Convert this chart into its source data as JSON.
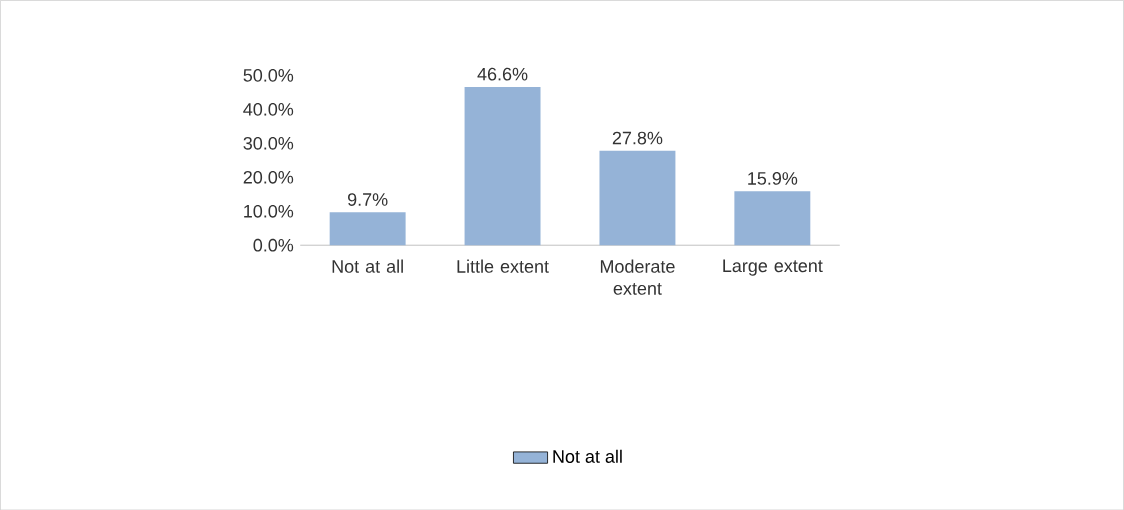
{
  "chart_data": {
    "type": "bar",
    "categories": [
      "Not at all",
      "Little extent",
      "Moderate extent",
      "Large extent"
    ],
    "series": [
      {
        "name": "Not at all",
        "color": "#95b3d7",
        "values": [
          9.7,
          46.6,
          27.8,
          15.9
        ],
        "value_labels": [
          "9.7%",
          "46.6%",
          "27.8%",
          "15.9%"
        ]
      }
    ],
    "ylim": [
      0,
      50
    ],
    "yticks": [
      {
        "value": 0,
        "label": "0.0%"
      },
      {
        "value": 10,
        "label": "10.0%"
      },
      {
        "value": 20,
        "label": "20.0%"
      },
      {
        "value": 30,
        "label": "30.0%"
      },
      {
        "value": 40,
        "label": "40.0%"
      },
      {
        "value": 50,
        "label": "50.0%"
      }
    ],
    "legend": "bottom",
    "grid": false
  }
}
